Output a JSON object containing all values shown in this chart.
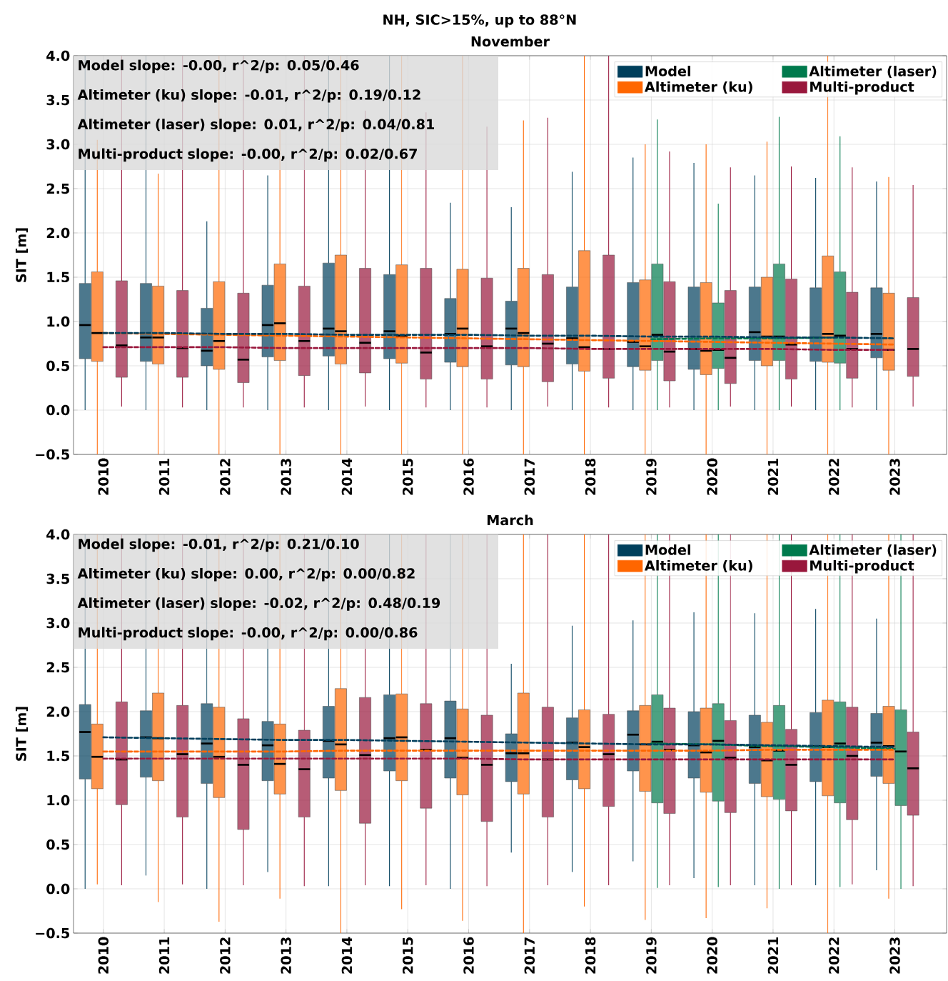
{
  "chart_data": [
    {
      "type": "box",
      "title": "NH, SIC>15%, up to 88°N",
      "subtitle": "November",
      "ylabel": "SIT [m]",
      "categories": [
        "2010",
        "2011",
        "2012",
        "2013",
        "2014",
        "2015",
        "2016",
        "2017",
        "2018",
        "2019",
        "2020",
        "2021",
        "2022",
        "2023"
      ],
      "ylim": [
        -0.5,
        4.0
      ],
      "yticks": [
        {
          "value": -0.5,
          "label": "−0.5"
        },
        {
          "value": 0,
          "label": "0.0"
        },
        {
          "value": 0.5,
          "label": "0.5"
        },
        {
          "value": 1,
          "label": "1.0"
        },
        {
          "value": 1.5,
          "label": "1.5"
        },
        {
          "value": 2,
          "label": "2.0"
        },
        {
          "value": 2.5,
          "label": "2.5"
        },
        {
          "value": 3,
          "label": "3.0"
        },
        {
          "value": 3.5,
          "label": "3.5"
        },
        {
          "value": 4,
          "label": "4.0"
        }
      ],
      "grid": true,
      "legend": "top right",
      "annotations": [
        "Model slope: -0.00, r^2/p: 0.05/0.46",
        "Altimeter (ku) slope: -0.01, r^2/p: 0.19/0.12",
        "Altimeter (laser) slope: 0.01, r^2/p: 0.04/0.81",
        "Multi-product slope: -0.00, r^2/p: 0.02/0.67"
      ],
      "series": [
        {
          "name": "Model",
          "color": "#003f5c",
          "boxes": [
            {
              "low": 0,
              "q1": 0.58,
              "median": 0.96,
              "q3": 1.43,
              "high": 4.0
            },
            {
              "low": 0,
              "q1": 0.55,
              "median": 0.82,
              "q3": 1.43,
              "high": 4.0
            },
            {
              "low": 0,
              "q1": 0.5,
              "median": 0.67,
              "q3": 1.15,
              "high": 2.13
            },
            {
              "low": 0,
              "q1": 0.6,
              "median": 0.96,
              "q3": 1.41,
              "high": 2.65
            },
            {
              "low": 0,
              "q1": 0.61,
              "median": 0.92,
              "q3": 1.66,
              "high": 4.0
            },
            {
              "low": 0,
              "q1": 0.58,
              "median": 0.89,
              "q3": 1.53,
              "high": 4.0
            },
            {
              "low": 0,
              "q1": 0.54,
              "median": 0.86,
              "q3": 1.26,
              "high": 2.34
            },
            {
              "low": 0,
              "q1": 0.51,
              "median": 0.92,
              "q3": 1.23,
              "high": 2.29
            },
            {
              "low": 0,
              "q1": 0.52,
              "median": 0.81,
              "q3": 1.39,
              "high": 2.69
            },
            {
              "low": 0,
              "q1": 0.49,
              "median": 0.77,
              "q3": 1.44,
              "high": 2.85
            },
            {
              "low": 0,
              "q1": 0.46,
              "median": 0.69,
              "q3": 1.39,
              "high": 2.79
            },
            {
              "low": 0,
              "q1": 0.56,
              "median": 0.88,
              "q3": 1.39,
              "high": 2.65
            },
            {
              "low": 0,
              "q1": 0.55,
              "median": 0.82,
              "q3": 1.38,
              "high": 2.62
            },
            {
              "low": 0,
              "q1": 0.59,
              "median": 0.86,
              "q3": 1.38,
              "high": 2.58
            }
          ]
        },
        {
          "name": "Altimeter (ku)",
          "color": "#ff6600",
          "boxes": [
            {
              "low": -0.5,
              "q1": 0.55,
              "median": 0.87,
              "q3": 1.56,
              "high": 3.05
            },
            {
              "low": -0.5,
              "q1": 0.52,
              "median": 0.82,
              "q3": 1.4,
              "high": 2.67
            },
            {
              "low": -0.5,
              "q1": 0.46,
              "median": 0.78,
              "q3": 1.45,
              "high": 4.0
            },
            {
              "low": -0.5,
              "q1": 0.56,
              "median": 0.98,
              "q3": 1.65,
              "high": 3.28
            },
            {
              "low": -0.5,
              "q1": 0.52,
              "median": 0.89,
              "q3": 1.75,
              "high": 4.0
            },
            {
              "low": -0.5,
              "q1": 0.53,
              "median": 0.84,
              "q3": 1.64,
              "high": 4.0
            },
            {
              "low": -0.5,
              "q1": 0.49,
              "median": 0.92,
              "q3": 1.59,
              "high": 4.0
            },
            {
              "low": -0.5,
              "q1": 0.49,
              "median": 0.87,
              "q3": 1.6,
              "high": 3.27
            },
            {
              "low": -0.5,
              "q1": 0.44,
              "median": 0.71,
              "q3": 1.8,
              "high": 4.0
            },
            {
              "low": -0.5,
              "q1": 0.45,
              "median": 0.72,
              "q3": 1.47,
              "high": 3.0
            },
            {
              "low": -0.5,
              "q1": 0.4,
              "median": 0.67,
              "q3": 1.44,
              "high": 3.0
            },
            {
              "low": -0.5,
              "q1": 0.5,
              "median": 0.83,
              "q3": 1.5,
              "high": 3.03
            },
            {
              "low": -0.5,
              "q1": 0.54,
              "median": 0.86,
              "q3": 1.74,
              "high": 4.0
            },
            {
              "low": -0.5,
              "q1": 0.45,
              "median": 0.68,
              "q3": 1.32,
              "high": 2.63
            }
          ]
        },
        {
          "name": "Altimeter (laser)",
          "color": "#007a4d",
          "boxes": [
            null,
            null,
            null,
            null,
            null,
            null,
            null,
            null,
            null,
            {
              "low": 0,
              "q1": 0.56,
              "median": 0.85,
              "q3": 1.65,
              "high": 3.28
            },
            {
              "low": 0,
              "q1": 0.47,
              "median": 0.68,
              "q3": 1.21,
              "high": 2.33
            },
            {
              "low": 0,
              "q1": 0.56,
              "median": 0.83,
              "q3": 1.65,
              "high": 3.31
            },
            {
              "low": 0,
              "q1": 0.53,
              "median": 0.84,
              "q3": 1.56,
              "high": 3.09
            },
            null
          ]
        },
        {
          "name": "Multi-product",
          "color": "#99173c",
          "boxes": [
            {
              "low": 0.04,
              "q1": 0.37,
              "median": 0.73,
              "q3": 1.46,
              "high": 4.0
            },
            {
              "low": 0.03,
              "q1": 0.37,
              "median": 0.7,
              "q3": 1.35,
              "high": 4.0
            },
            {
              "low": 0.03,
              "q1": 0.31,
              "median": 0.57,
              "q3": 1.32,
              "high": 4.0
            },
            {
              "low": 0.03,
              "q1": 0.39,
              "median": 0.78,
              "q3": 1.4,
              "high": 4.0
            },
            {
              "low": 0.04,
              "q1": 0.42,
              "median": 0.76,
              "q3": 1.6,
              "high": 3.38
            },
            {
              "low": 0.03,
              "q1": 0.35,
              "median": 0.65,
              "q3": 1.6,
              "high": 3.36
            },
            {
              "low": 0.03,
              "q1": 0.35,
              "median": 0.72,
              "q3": 1.49,
              "high": 3.2
            },
            {
              "low": 0.04,
              "q1": 0.32,
              "median": 0.75,
              "q3": 1.53,
              "high": 3.3
            },
            {
              "low": 0.03,
              "q1": 0.36,
              "median": 0.69,
              "q3": 1.75,
              "high": 4.0
            },
            {
              "low": 0.03,
              "q1": 0.33,
              "median": 0.66,
              "q3": 1.45,
              "high": 2.92
            },
            {
              "low": 0.04,
              "q1": 0.3,
              "median": 0.59,
              "q3": 1.35,
              "high": 2.74
            },
            {
              "low": 0.04,
              "q1": 0.35,
              "median": 0.74,
              "q3": 1.48,
              "high": 2.75
            },
            {
              "low": 0.03,
              "q1": 0.36,
              "median": 0.69,
              "q3": 1.33,
              "high": 2.74
            },
            {
              "low": 0.04,
              "q1": 0.38,
              "median": 0.69,
              "q3": 1.27,
              "high": 2.54
            }
          ]
        },
        {
          "type": "line",
          "color": "#003f5c",
          "line_style": "dashed",
          "values": [
            0.87,
            0.87,
            0.86,
            0.86,
            0.85,
            0.85,
            0.85,
            0.84,
            0.84,
            0.83,
            0.83,
            0.82,
            0.82,
            0.81
          ]
        },
        {
          "type": "line",
          "color": "#ff6600",
          "line_style": "dashed",
          "values": [
            0.87,
            0.86,
            0.85,
            0.84,
            0.83,
            0.82,
            0.81,
            0.8,
            0.79,
            0.78,
            0.77,
            0.76,
            0.75,
            0.74
          ]
        },
        {
          "type": "line",
          "color": "#007a4d",
          "line_style": "dashed",
          "values": [
            null,
            null,
            null,
            null,
            null,
            null,
            null,
            null,
            null,
            0.8,
            0.81,
            0.81,
            0.82,
            null
          ]
        },
        {
          "type": "line",
          "color": "#99173c",
          "line_style": "dashed",
          "values": [
            0.71,
            0.71,
            0.71,
            0.7,
            0.7,
            0.7,
            0.7,
            0.7,
            0.69,
            0.69,
            0.69,
            0.69,
            0.68,
            0.68
          ]
        }
      ]
    },
    {
      "type": "box",
      "title": "March",
      "ylabel": "SIT [m]",
      "categories": [
        "2010",
        "2011",
        "2012",
        "2013",
        "2014",
        "2015",
        "2016",
        "2017",
        "2018",
        "2019",
        "2020",
        "2021",
        "2022",
        "2023"
      ],
      "ylim": [
        -0.5,
        4.0
      ],
      "yticks": [
        {
          "value": -0.5,
          "label": "−0.5"
        },
        {
          "value": 0,
          "label": "0.0"
        },
        {
          "value": 0.5,
          "label": "0.5"
        },
        {
          "value": 1,
          "label": "1.0"
        },
        {
          "value": 1.5,
          "label": "1.5"
        },
        {
          "value": 2,
          "label": "2.0"
        },
        {
          "value": 2.5,
          "label": "2.5"
        },
        {
          "value": 3,
          "label": "3.0"
        },
        {
          "value": 3.5,
          "label": "3.5"
        },
        {
          "value": 4,
          "label": "4.0"
        }
      ],
      "grid": true,
      "legend": "top right",
      "annotations": [
        "Model slope: -0.01, r^2/p: 0.21/0.10",
        "Altimeter (ku) slope: 0.00, r^2/p: 0.00/0.82",
        "Altimeter (laser) slope: -0.02, r^2/p: 0.48/0.19",
        "Multi-product slope: -0.00, r^2/p: 0.00/0.86"
      ],
      "series": [
        {
          "name": "Model",
          "color": "#003f5c",
          "boxes": [
            {
              "low": 0,
              "q1": 1.24,
              "median": 1.77,
              "q3": 2.08,
              "high": 4.0
            },
            {
              "low": 0.15,
              "q1": 1.26,
              "median": 1.71,
              "q3": 2.01,
              "high": 4.0
            },
            {
              "low": 0,
              "q1": 1.19,
              "median": 1.64,
              "q3": 2.09,
              "high": 4.0
            },
            {
              "low": 0.19,
              "q1": 1.22,
              "median": 1.62,
              "q3": 1.89,
              "high": 4.0
            },
            {
              "low": 0.03,
              "q1": 1.25,
              "median": 1.67,
              "q3": 2.06,
              "high": 4.0
            },
            {
              "low": 0.03,
              "q1": 1.33,
              "median": 1.7,
              "q3": 2.19,
              "high": 4.0
            },
            {
              "low": 0,
              "q1": 1.25,
              "median": 1.7,
              "q3": 2.12,
              "high": 4.0
            },
            {
              "low": 0.41,
              "q1": 1.21,
              "median": 1.53,
              "q3": 1.75,
              "high": 2.54
            },
            {
              "low": 0.19,
              "q1": 1.23,
              "median": 1.65,
              "q3": 1.93,
              "high": 2.97
            },
            {
              "low": 0.31,
              "q1": 1.33,
              "median": 1.74,
              "q3": 2.01,
              "high": 3.03
            },
            {
              "low": 0.12,
              "q1": 1.25,
              "median": 1.62,
              "q3": 2.0,
              "high": 3.12
            },
            {
              "low": 0.04,
              "q1": 1.19,
              "median": 1.6,
              "q3": 1.96,
              "high": 3.11
            },
            {
              "low": 0.04,
              "q1": 1.21,
              "median": 1.61,
              "q3": 1.99,
              "high": 3.16
            },
            {
              "low": 0.21,
              "q1": 1.27,
              "median": 1.65,
              "q3": 1.98,
              "high": 3.05
            }
          ]
        },
        {
          "name": "Altimeter (ku)",
          "color": "#ff6600",
          "boxes": [
            {
              "low": 0.05,
              "q1": 1.13,
              "median": 1.49,
              "q3": 1.86,
              "high": 4.0
            },
            {
              "low": -0.15,
              "q1": 1.22,
              "median": 1.7,
              "q3": 2.21,
              "high": 4.0
            },
            {
              "low": -0.37,
              "q1": 1.03,
              "median": 1.49,
              "q3": 2.05,
              "high": 4.0
            },
            {
              "low": -0.11,
              "q1": 1.07,
              "median": 1.41,
              "q3": 1.86,
              "high": 4.0
            },
            {
              "low": -0.5,
              "q1": 1.11,
              "median": 1.63,
              "q3": 2.26,
              "high": 4.0
            },
            {
              "low": -0.23,
              "q1": 1.22,
              "median": 1.71,
              "q3": 2.2,
              "high": 4.0
            },
            {
              "low": -0.36,
              "q1": 1.06,
              "median": 1.48,
              "q3": 2.03,
              "high": 4.0
            },
            {
              "low": -0.5,
              "q1": 1.07,
              "median": 1.53,
              "q3": 2.21,
              "high": 4.0
            },
            {
              "low": -0.2,
              "q1": 1.13,
              "median": 1.6,
              "q3": 2.02,
              "high": 4.0
            },
            {
              "low": -0.35,
              "q1": 1.1,
              "median": 1.63,
              "q3": 2.07,
              "high": 4.0
            },
            {
              "low": -0.33,
              "q1": 1.09,
              "median": 1.54,
              "q3": 2.04,
              "high": 4.0
            },
            {
              "low": -0.22,
              "q1": 1.04,
              "median": 1.45,
              "q3": 1.88,
              "high": 4.0
            },
            {
              "low": -0.5,
              "q1": 1.05,
              "median": 1.6,
              "q3": 2.13,
              "high": 4.0
            },
            {
              "low": -0.11,
              "q1": 1.19,
              "median": 1.61,
              "q3": 2.06,
              "high": 4.0
            }
          ]
        },
        {
          "name": "Altimeter (laser)",
          "color": "#007a4d",
          "boxes": [
            null,
            null,
            null,
            null,
            null,
            null,
            null,
            null,
            null,
            {
              "low": 0.01,
              "q1": 0.97,
              "median": 1.66,
              "q3": 2.19,
              "high": 4.0
            },
            {
              "low": 0.02,
              "q1": 0.99,
              "median": 1.67,
              "q3": 2.09,
              "high": 4.0
            },
            {
              "low": 0,
              "q1": 1.01,
              "median": 1.56,
              "q3": 2.07,
              "high": 4.0
            },
            {
              "low": 0.02,
              "q1": 0.97,
              "median": 1.64,
              "q3": 2.11,
              "high": 4.0
            },
            {
              "low": 0,
              "q1": 0.94,
              "median": 1.55,
              "q3": 2.02,
              "high": 4.0
            }
          ]
        },
        {
          "name": "Multi-product",
          "color": "#99173c",
          "boxes": [
            {
              "low": 0.04,
              "q1": 0.95,
              "median": 1.46,
              "q3": 2.11,
              "high": 4.0
            },
            {
              "low": 0.05,
              "q1": 0.81,
              "median": 1.52,
              "q3": 2.07,
              "high": 4.0
            },
            {
              "low": 0.04,
              "q1": 0.67,
              "median": 1.4,
              "q3": 1.92,
              "high": 4.0
            },
            {
              "low": 0.03,
              "q1": 0.81,
              "median": 1.35,
              "q3": 1.79,
              "high": 4.0
            },
            {
              "low": 0.04,
              "q1": 0.74,
              "median": 1.51,
              "q3": 2.16,
              "high": 4.0
            },
            {
              "low": 0.04,
              "q1": 0.91,
              "median": 1.57,
              "q3": 2.09,
              "high": 4.0
            },
            {
              "low": 0.03,
              "q1": 0.76,
              "median": 1.4,
              "q3": 1.96,
              "high": 4.0
            },
            {
              "low": 0.04,
              "q1": 0.81,
              "median": 1.46,
              "q3": 2.05,
              "high": 4.0
            },
            {
              "low": 0.04,
              "q1": 0.93,
              "median": 1.52,
              "q3": 1.97,
              "high": 4.0
            },
            {
              "low": 0.04,
              "q1": 0.85,
              "median": 1.57,
              "q3": 2.04,
              "high": 4.0
            },
            {
              "low": 0.04,
              "q1": 0.86,
              "median": 1.48,
              "q3": 1.9,
              "high": 4.0
            },
            {
              "low": 0.04,
              "q1": 0.88,
              "median": 1.4,
              "q3": 1.8,
              "high": 4.0
            },
            {
              "low": 0.05,
              "q1": 0.78,
              "median": 1.5,
              "q3": 2.05,
              "high": 4.0
            },
            {
              "low": 0.03,
              "q1": 0.83,
              "median": 1.36,
              "q3": 1.77,
              "high": 4.0
            }
          ]
        },
        {
          "type": "line",
          "color": "#003f5c",
          "line_style": "dashed",
          "values": [
            1.71,
            1.7,
            1.69,
            1.68,
            1.68,
            1.67,
            1.66,
            1.65,
            1.64,
            1.63,
            1.63,
            1.62,
            1.61,
            1.6
          ]
        },
        {
          "type": "line",
          "color": "#ff6600",
          "line_style": "dashed",
          "values": [
            1.55,
            1.55,
            1.55,
            1.55,
            1.56,
            1.56,
            1.56,
            1.56,
            1.56,
            1.56,
            1.56,
            1.57,
            1.57,
            1.57
          ]
        },
        {
          "type": "line",
          "color": "#007a4d",
          "line_style": "dashed",
          "values": [
            null,
            null,
            null,
            null,
            null,
            null,
            null,
            null,
            null,
            1.64,
            1.63,
            1.61,
            1.6,
            1.58
          ]
        },
        {
          "type": "line",
          "color": "#99173c",
          "line_style": "dashed",
          "values": [
            1.47,
            1.47,
            1.47,
            1.47,
            1.47,
            1.47,
            1.47,
            1.46,
            1.46,
            1.46,
            1.46,
            1.46,
            1.46,
            1.46
          ]
        }
      ]
    }
  ]
}
